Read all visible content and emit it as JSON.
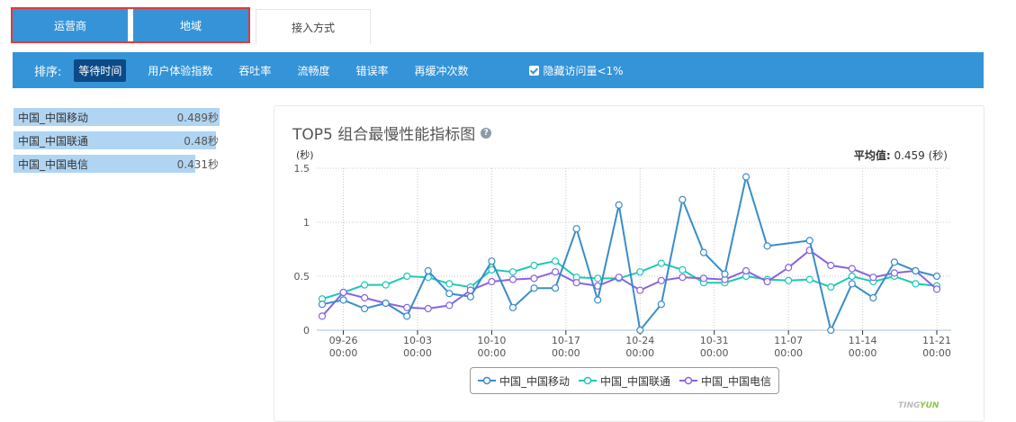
{
  "tabs": [
    {
      "label": "运营商",
      "active": true
    },
    {
      "label": "地域",
      "active": true
    },
    {
      "label": "接入方式",
      "active": false
    }
  ],
  "sortbar": {
    "label": "排序:",
    "items": [
      "等待时间",
      "用户体验指数",
      "吞吐率",
      "流畅度",
      "错误率",
      "再缓冲次数"
    ],
    "selected": "等待时间",
    "hide_checkbox": {
      "label": "隐藏访问量<1%",
      "checked": true
    }
  },
  "ranking": [
    {
      "name": "中国_中国移动",
      "value": "0.489秒",
      "ratio": 1.0
    },
    {
      "name": "中国_中国联通",
      "value": "0.48秒",
      "ratio": 0.982
    },
    {
      "name": "中国_中国电信",
      "value": "0.431秒",
      "ratio": 0.881
    }
  ],
  "card": {
    "title": "TOP5 组合最慢性能指标图",
    "help_icon": "question-circle-icon",
    "unit": "(秒)",
    "avg_label": "平均值:",
    "avg_value": "0.459 (秒)",
    "brand_a": "TING",
    "brand_b": "YUN"
  },
  "colors": {
    "accent": "#3594d8",
    "selected": "#0d4a85",
    "bar": "#b0d5f2",
    "highlight_border": "#e4393c",
    "series": [
      "#3a8dc9",
      "#1ec8b4",
      "#8a63e0"
    ]
  },
  "chart_data": {
    "type": "line",
    "title": "TOP5 组合最慢性能指标图",
    "ylabel": "(秒)",
    "ylim": [
      0,
      1.5
    ],
    "yticks": [
      0,
      0.5,
      1,
      1.5
    ],
    "xticks": [
      "09-26 00:00",
      "10-03 00:00",
      "10-10 00:00",
      "10-17 00:00",
      "10-24 00:00",
      "10-31 00:00",
      "11-07 00:00",
      "11-14 00:00",
      "11-21 00:00"
    ],
    "x": [
      "09-24",
      "09-26",
      "09-28",
      "09-30",
      "10-02",
      "10-04",
      "10-06",
      "10-08",
      "10-10",
      "10-12",
      "10-14",
      "10-16",
      "10-18",
      "10-20",
      "10-22",
      "10-24",
      "10-26",
      "10-28",
      "10-30",
      "11-01",
      "11-03",
      "11-05",
      "11-07",
      "11-09",
      "11-11",
      "11-13",
      "11-15",
      "11-17",
      "11-19",
      "11-21"
    ],
    "series": [
      {
        "name": "中国_中国移动",
        "values": [
          0.24,
          0.28,
          0.2,
          0.25,
          0.13,
          0.55,
          0.34,
          0.31,
          0.64,
          0.21,
          0.39,
          0.39,
          0.94,
          0.28,
          1.16,
          0.0,
          0.24,
          1.21,
          0.72,
          0.52,
          1.42,
          0.78,
          null,
          0.83,
          0.0,
          0.43,
          0.3,
          0.63,
          0.55,
          0.5
        ]
      },
      {
        "name": "中国_中国联通",
        "values": [
          0.29,
          0.35,
          0.42,
          0.42,
          0.5,
          0.49,
          0.43,
          0.4,
          0.56,
          0.54,
          0.6,
          0.64,
          0.49,
          0.48,
          0.48,
          0.54,
          0.62,
          0.56,
          0.44,
          0.44,
          0.5,
          0.47,
          0.46,
          0.47,
          0.4,
          0.5,
          0.45,
          0.5,
          0.43,
          0.41
        ]
      },
      {
        "name": "中国_中国电信",
        "values": [
          0.13,
          0.35,
          0.3,
          0.25,
          0.21,
          0.2,
          0.23,
          0.37,
          0.45,
          0.47,
          0.48,
          0.54,
          0.44,
          0.41,
          0.49,
          0.37,
          0.46,
          0.49,
          0.48,
          0.47,
          0.55,
          0.45,
          0.58,
          0.74,
          0.6,
          0.57,
          0.49,
          0.53,
          0.55,
          0.38
        ]
      }
    ],
    "legend_position": "bottom",
    "average": 0.459,
    "grid": true
  }
}
